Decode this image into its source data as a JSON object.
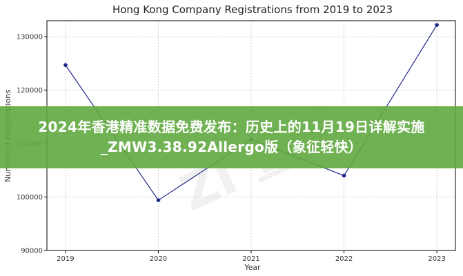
{
  "chart_data": {
    "type": "line",
    "title": "Hong Kong Company Registrations from 2019 to 2023",
    "xlabel": "Year",
    "ylabel": "Number of Registrations",
    "x": [
      2019,
      2020,
      2021,
      2022,
      2023
    ],
    "x_ticks": [
      "2019",
      "2020",
      "2021",
      "2022",
      "2023"
    ],
    "y_ticks": [
      "90000",
      "100000",
      "110000",
      "120000",
      "130000"
    ],
    "ylim": [
      90000,
      133000
    ],
    "grid": true,
    "series": [
      {
        "values": [
          124700,
          99400,
          110800,
          104000,
          132200
        ],
        "color": "#1f2a8a"
      }
    ]
  },
  "banner": {
    "text": "2024年香港精准数据免费发布：历史上的11月19日详解实施_ZMW3.38.92Allergo版（象征轻快）"
  }
}
